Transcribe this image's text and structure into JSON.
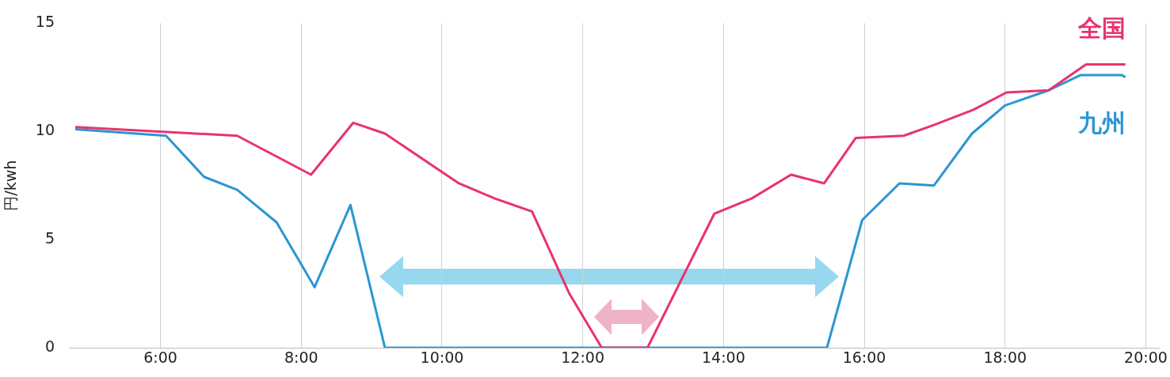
{
  "chart_data": {
    "type": "line",
    "ylabel": "円/kwh",
    "xlim": [
      4.7,
      20.19
    ],
    "xticks": [
      {
        "value": 6,
        "label": "6:00"
      },
      {
        "value": 8,
        "label": "8:00"
      },
      {
        "value": 10,
        "label": "10:00"
      },
      {
        "value": 12,
        "label": "12:00"
      },
      {
        "value": 14,
        "label": "14:00"
      },
      {
        "value": 16,
        "label": "16:00"
      },
      {
        "value": 18,
        "label": "18:00"
      },
      {
        "value": 20,
        "label": "20:00"
      }
    ],
    "ylim": [
      0,
      15
    ],
    "yticks": [
      0,
      5,
      10,
      15
    ],
    "grid": "x",
    "marker": "none",
    "line_style": "solid",
    "series": [
      {
        "name": "全国",
        "color": "#e8336e",
        "x": [
          4.79,
          7.09,
          8.14,
          8.74,
          9.19,
          10.24,
          10.75,
          11.28,
          11.81,
          12.27,
          12.92,
          13.87,
          14.4,
          14.96,
          15.43,
          15.88,
          16.56,
          16.99,
          17.55,
          18.02,
          18.62,
          19.15,
          19.71
        ],
        "values": [
          10.2,
          9.8,
          8,
          10.4,
          9.9,
          7.6,
          6.9,
          6.3,
          2.5,
          0,
          0,
          6.2,
          6.9,
          8,
          7.6,
          9.7,
          9.8,
          10.3,
          11,
          11.8,
          11.9,
          13.1,
          13.1
        ]
      },
      {
        "name": "九州",
        "color": "#2b96d2",
        "x": [
          4.79,
          6.08,
          6.62,
          7.09,
          7.65,
          8.19,
          8.7,
          9.19,
          15.47,
          15.97,
          16.5,
          16.99,
          17.53,
          18,
          18.62,
          19.07,
          19.66,
          19.71
        ],
        "values": [
          10.1,
          9.8,
          7.9,
          7.3,
          5.8,
          2.8,
          6.6,
          0,
          0,
          5.9,
          7.6,
          7.5,
          9.9,
          11.2,
          11.9,
          12.6,
          12.6,
          12.5
        ]
      }
    ]
  }
}
